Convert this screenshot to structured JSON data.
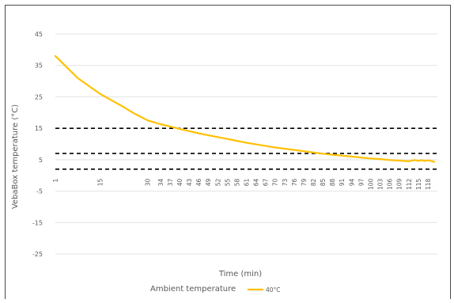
{
  "chart_data": {
    "type": "line",
    "ylabel": "VebaBox temperature (°C)",
    "xlabel": "Time (min)",
    "legend_title": "Ambient temperature",
    "legend_position": "bottom",
    "grid": true,
    "ylim": [
      -25,
      45
    ],
    "yticks": [
      45,
      35,
      25,
      15,
      5,
      -5,
      -15,
      -25
    ],
    "xticks": [
      1,
      15,
      30,
      34,
      37,
      40,
      43,
      46,
      49,
      52,
      55,
      58,
      61,
      64,
      67,
      70,
      73,
      76,
      79,
      82,
      85,
      88,
      91,
      94,
      97,
      100,
      103,
      106,
      109,
      112,
      115,
      118
    ],
    "series": [
      {
        "name": "40°C",
        "color": "#FFC000",
        "points": [
          [
            1,
            38.0
          ],
          [
            8,
            31.0
          ],
          [
            15,
            26.0
          ],
          [
            22,
            22.0
          ],
          [
            26,
            19.6
          ],
          [
            30,
            17.5
          ],
          [
            34,
            16.3
          ],
          [
            37,
            15.6
          ],
          [
            40,
            14.8
          ],
          [
            43,
            14.1
          ],
          [
            46,
            13.4
          ],
          [
            49,
            12.8
          ],
          [
            52,
            12.2
          ],
          [
            55,
            11.6
          ],
          [
            58,
            11.0
          ],
          [
            61,
            10.4
          ],
          [
            64,
            9.9
          ],
          [
            67,
            9.4
          ],
          [
            70,
            8.9
          ],
          [
            73,
            8.5
          ],
          [
            76,
            8.1
          ],
          [
            79,
            7.7
          ],
          [
            82,
            7.3
          ],
          [
            85,
            6.9
          ],
          [
            88,
            6.6
          ],
          [
            91,
            6.3
          ],
          [
            94,
            6.0
          ],
          [
            97,
            5.7
          ],
          [
            100,
            5.4
          ],
          [
            103,
            5.2
          ],
          [
            106,
            4.9
          ],
          [
            109,
            4.7
          ],
          [
            112,
            4.5
          ],
          [
            114,
            4.9
          ],
          [
            115,
            4.6
          ],
          [
            116,
            4.9
          ],
          [
            117,
            4.6
          ],
          [
            118,
            4.8
          ],
          [
            119,
            4.6
          ],
          [
            120,
            4.3
          ]
        ]
      }
    ],
    "reference_lines": [
      {
        "y": 15,
        "style": "dashed",
        "color": "#000000"
      },
      {
        "y": 7,
        "style": "dashed",
        "color": "#000000"
      },
      {
        "y": 2,
        "style": "dashed",
        "color": "#000000"
      }
    ]
  }
}
